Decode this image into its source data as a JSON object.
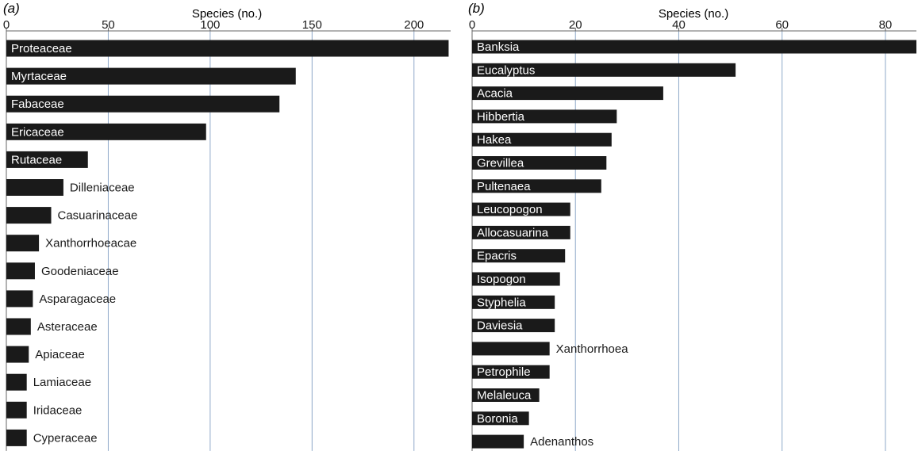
{
  "colors": {
    "bar": "#1a1a1a",
    "grid": "#8fa9c9",
    "axis": "#666666",
    "label_inside": "#ffffff",
    "label_outside": "#1a1a1a"
  },
  "chart_data": [
    {
      "type": "bar",
      "orientation": "horizontal",
      "panel": "(a)",
      "xlabel": "Species (no.)",
      "xlim": [
        0,
        218
      ],
      "xticks": [
        0,
        50,
        100,
        150,
        200
      ],
      "grid": true,
      "categories": [
        "Proteaceae",
        "Myrtaceae",
        "Fabaceae",
        "Ericaceae",
        "Rutaceae",
        "Dilleniaceae",
        "Casuarinaceae",
        "Xanthorrhoeacae",
        "Goodeniaceae",
        "Asparagaceae",
        "Asteraceae",
        "Apiaceae",
        "Lamiaceae",
        "Iridaceae",
        "Cyperaceae"
      ],
      "values": [
        217,
        142,
        134,
        98,
        40,
        28,
        22,
        16,
        14,
        13,
        12,
        11,
        10,
        10,
        10
      ]
    },
    {
      "type": "bar",
      "orientation": "horizontal",
      "panel": "(b)",
      "xlabel": "Species (no.)",
      "xlim": [
        0,
        86
      ],
      "xticks": [
        0,
        20,
        40,
        60,
        80
      ],
      "grid": true,
      "categories": [
        "Banksia",
        "Eucalyptus",
        "Acacia",
        "Hibbertia",
        "Hakea",
        "Grevillea",
        "Pultenaea",
        "Leucopogon",
        "Allocasuarina",
        "Epacris",
        "Isopogon",
        "Styphelia",
        "Daviesia",
        "Xanthorrhoea",
        "Petrophile",
        "Melaleuca",
        "Boronia",
        "Adenanthos"
      ],
      "values": [
        86,
        51,
        37,
        28,
        27,
        26,
        25,
        19,
        19,
        18,
        17,
        16,
        16,
        15,
        15,
        13,
        11,
        10
      ]
    }
  ]
}
